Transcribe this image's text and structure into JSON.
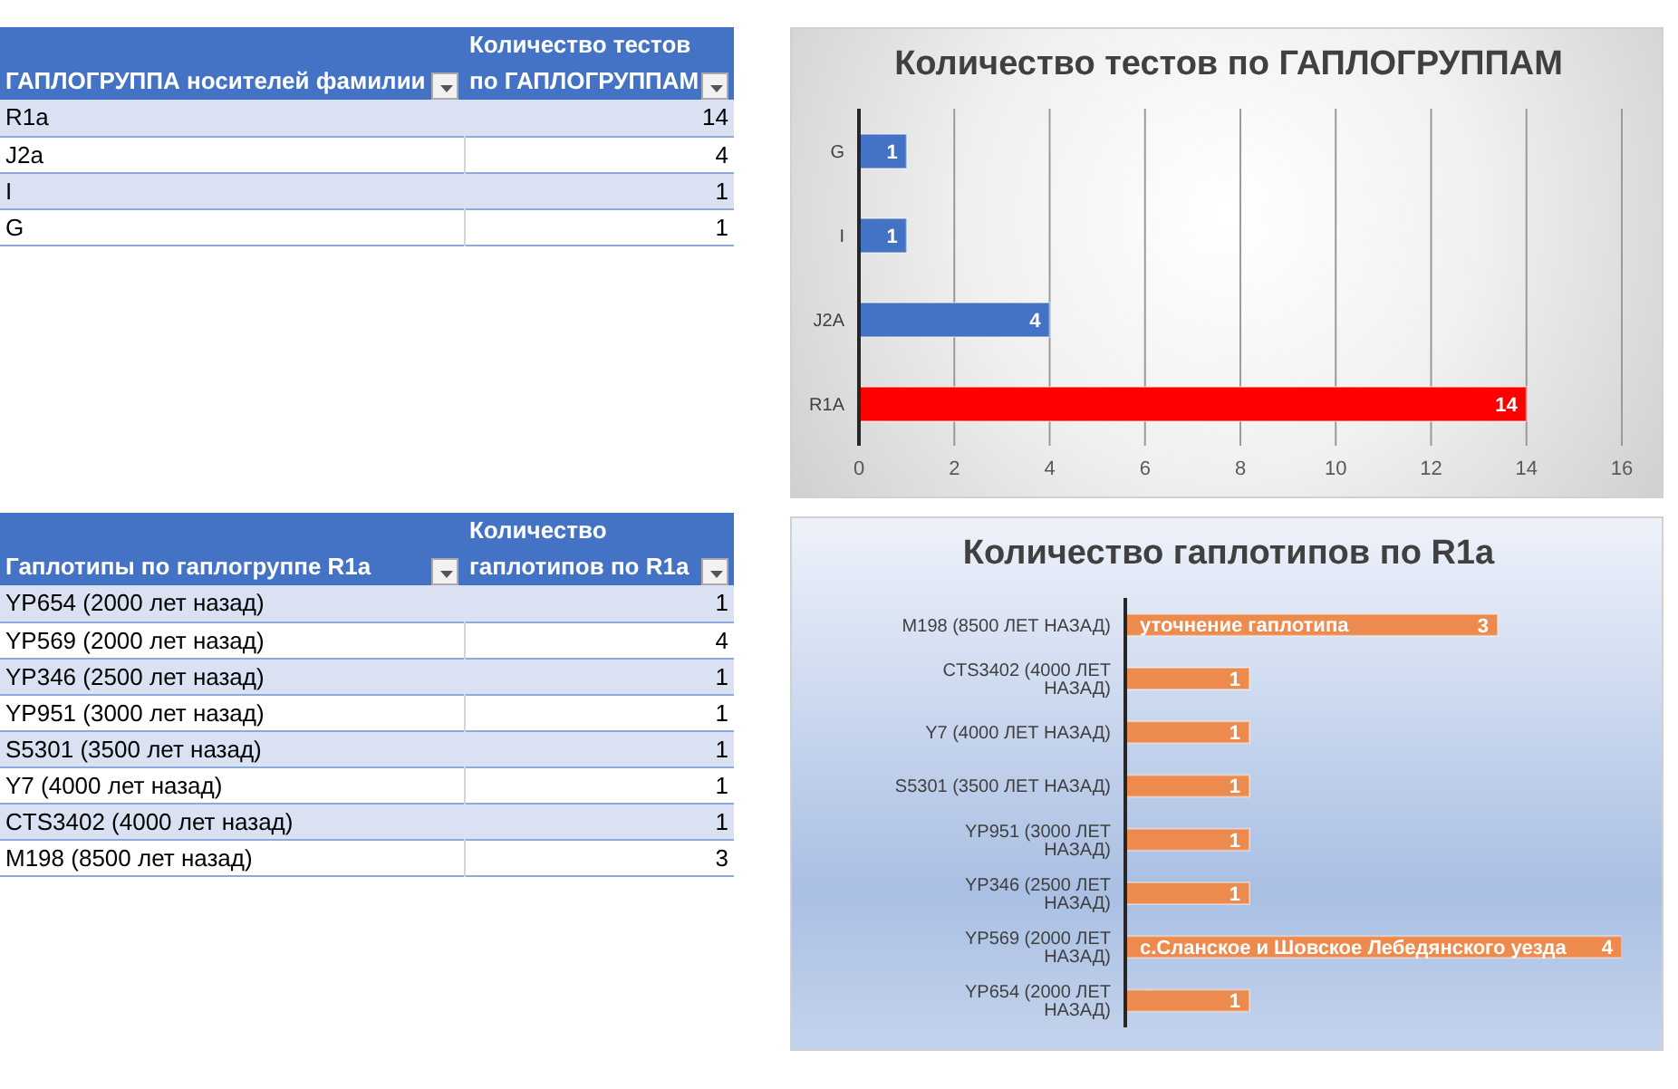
{
  "chart_data": [
    {
      "type": "other",
      "xlabel": "ГАПЛОГРУППА носителей фамилии",
      "ylabel": "Количество тестов по ГАПЛОГРУППАМ",
      "categories": [
        "R1a",
        "J2a",
        "I",
        "G"
      ],
      "values": [
        14,
        4,
        1,
        1
      ],
      "data_labels": true
    },
    {
      "type": "bar",
      "orientation": "horizontal",
      "title": "Количество тестов по ГАПЛОГРУППАМ",
      "categories": [
        "G",
        "I",
        "J2A",
        "R1A"
      ],
      "values": [
        1,
        1,
        4,
        14
      ],
      "colors": [
        "#4472c4",
        "#4472c4",
        "#4472c4",
        "#ff0000"
      ],
      "xlim": [
        0,
        16
      ],
      "xticks": [
        0,
        2,
        4,
        6,
        8,
        10,
        12,
        14,
        16
      ],
      "grid": "x",
      "data_labels": true
    },
    {
      "type": "other",
      "xlabel": "Гаплотипы по гаплогруппе R1a",
      "ylabel": "Количество гаплотипов по R1a",
      "categories": [
        "YP654 (2000 лет назад)",
        "YP569 (2000 лет назад)",
        "YP346 (2500 лет назад)",
        "YP951 (3000 лет назад)",
        "S5301 (3500 лет назад)",
        "Y7 (4000 лет назад)",
        "CTS3402 (4000 лет назад)",
        "M198 (8500 лет назад)"
      ],
      "values": [
        1,
        4,
        1,
        1,
        1,
        1,
        1,
        3
      ],
      "data_labels": true
    },
    {
      "type": "bar",
      "orientation": "horizontal",
      "title": "Количество гаплотипов по R1a",
      "categories": [
        "M198 (8500 ЛЕТ НАЗАД)",
        "CTS3402 (4000 ЛЕТ НАЗАД)",
        "Y7 (4000 ЛЕТ НАЗАД)",
        "S5301 (3500 ЛЕТ НАЗАД)",
        "YP951 (3000 ЛЕТ НАЗАД)",
        "YP346 (2500 ЛЕТ НАЗАД)",
        "YP569 (2000 ЛЕТ НАЗАД)",
        "YP654 (2000 ЛЕТ НАЗАД)"
      ],
      "values": [
        3,
        1,
        1,
        1,
        1,
        1,
        4,
        1
      ],
      "color": "#ed8b4f",
      "data_labels": true,
      "annotations": [
        {
          "text": "уточнение  гаплотипа",
          "x": 0,
          "y": "M198 (8500 ЛЕТ НАЗАД)"
        },
        {
          "text": "с.Сланское и Шовское Лебедянского уезда",
          "x": 0,
          "y": "YP569 (2000 ЛЕТ НАЗАД)"
        }
      ]
    }
  ]
}
